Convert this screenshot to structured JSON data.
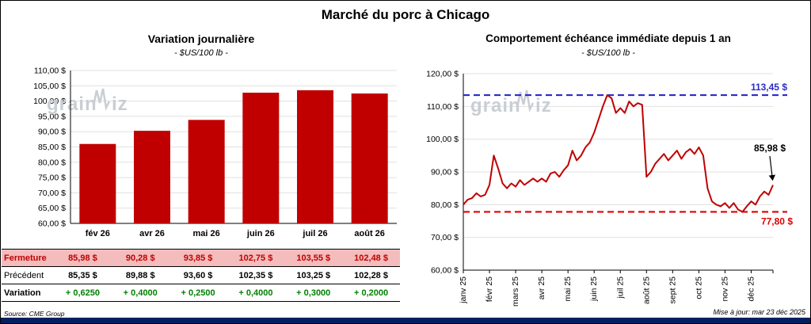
{
  "page": {
    "title": "Marché du porc à Chicago",
    "source": "Source: CME Group",
    "updated": "Mise à jour: mar 23 déc 2025",
    "watermark": "grainwiz"
  },
  "colors": {
    "bar_red": "#C00000",
    "series_red": "#C00000",
    "dash_red": "#E00000",
    "blue": "#2B2BC8",
    "green": "#008000",
    "fermeture_bg": "#F4BCBC",
    "navy": "#002060",
    "grid": "#E0E0E0",
    "watermark": "#C9CED3"
  },
  "table": {
    "rows": [
      {
        "id": "fermeture",
        "label": "Fermeture",
        "values": [
          "85,98  $",
          "90,28  $",
          "93,85  $",
          "102,75  $",
          "103,55  $",
          "102,48  $"
        ]
      },
      {
        "id": "precedent",
        "label": "Précédent",
        "values": [
          "85,35  $",
          "89,88  $",
          "93,60  $",
          "102,35  $",
          "103,25  $",
          "102,28  $"
        ]
      },
      {
        "id": "variation",
        "label": "Variation",
        "values": [
          "+ 0,6250",
          "+ 0,4000",
          "+ 0,2500",
          "+ 0,4000",
          "+ 0,3000",
          "+ 0,2000"
        ]
      }
    ]
  },
  "chart_data": [
    {
      "type": "bar",
      "title": "Variation journalière",
      "subtitle": "- $US/100 lb -",
      "categories": [
        "fév 26",
        "avr 26",
        "mai 26",
        "juin 26",
        "juil 26",
        "août 26"
      ],
      "values": [
        85.98,
        90.28,
        93.85,
        102.75,
        103.55,
        102.48
      ],
      "ylim": [
        60,
        110
      ],
      "ytick_step": 5,
      "yticks": [
        "110,00 $",
        "105,00 $",
        "100,00 $",
        "95,00 $",
        "90,00 $",
        "85,00 $",
        "80,00 $",
        "75,00 $",
        "70,00 $",
        "65,00 $",
        "60,00 $"
      ],
      "grid": true,
      "legend": "none"
    },
    {
      "type": "line",
      "title": "Comportement échéance immédiate depuis 1 an",
      "subtitle": "- $US/100 lb -",
      "x_categories": [
        "janv 25",
        "févr 25",
        "mars 25",
        "avr 25",
        "mai 25",
        "juin 25",
        "juil 25",
        "août 25",
        "sept 25",
        "oct 25",
        "nov 25",
        "déc 25"
      ],
      "points_per_month": 6,
      "values": [
        80.0,
        81.5,
        82.0,
        83.5,
        82.5,
        83.0,
        86.0,
        95.0,
        91.0,
        86.5,
        85.0,
        86.5,
        85.5,
        87.5,
        86.0,
        87.0,
        88.0,
        87.0,
        88.0,
        87.0,
        89.5,
        90.0,
        88.5,
        90.5,
        92.0,
        96.5,
        93.5,
        95.0,
        97.5,
        99.0,
        102.0,
        106.0,
        110.0,
        113.45,
        112.5,
        108.0,
        109.5,
        108.0,
        111.5,
        110.0,
        111.0,
        110.5,
        88.5,
        90.0,
        92.5,
        94.0,
        95.5,
        93.5,
        95.0,
        96.5,
        94.0,
        96.0,
        97.0,
        95.5,
        97.5,
        95.0,
        85.0,
        81.0,
        80.0,
        79.5,
        80.5,
        79.0,
        80.5,
        78.5,
        77.8,
        79.5,
        81.0,
        80.0,
        82.5,
        84.0,
        83.0,
        85.98
      ],
      "ylim": [
        60,
        120
      ],
      "ytick_step": 10,
      "yticks": [
        "120,00 $",
        "110,00 $",
        "100,00 $",
        "90,00 $",
        "80,00 $",
        "70,00 $",
        "60,00 $"
      ],
      "grid": true,
      "legend": "none",
      "annotations": {
        "max_line": {
          "value": 113.45,
          "label": "113,45 $"
        },
        "min_line": {
          "value": 77.8,
          "label": "77,80 $"
        },
        "last_point": {
          "value": 85.98,
          "label": "85,98 $"
        }
      }
    }
  ]
}
